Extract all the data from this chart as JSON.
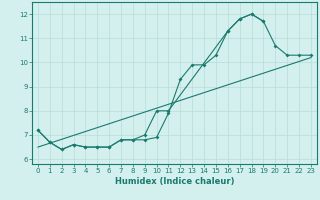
{
  "title": "",
  "xlabel": "Humidex (Indice chaleur)",
  "bg_color": "#d4f0ee",
  "grid_color": "#b8dcd8",
  "line_color": "#1a7a6e",
  "x_values": [
    0,
    1,
    2,
    3,
    4,
    5,
    6,
    7,
    8,
    9,
    10,
    11,
    12,
    13,
    14,
    15,
    16,
    17,
    18,
    19,
    20,
    21,
    22,
    23
  ],
  "line1": [
    7.2,
    6.7,
    6.4,
    6.6,
    6.5,
    6.5,
    6.5,
    6.8,
    6.8,
    6.8,
    6.9,
    7.9,
    9.3,
    9.9,
    9.9,
    10.3,
    11.3,
    11.8,
    12.0,
    11.7,
    10.7,
    10.3,
    10.3,
    10.3
  ],
  "line2_x": [
    0,
    1,
    2,
    3,
    4,
    5,
    6,
    7,
    8,
    9,
    10,
    11,
    16,
    17,
    18,
    19
  ],
  "line2_y": [
    7.2,
    6.7,
    6.4,
    6.6,
    6.5,
    6.5,
    6.5,
    6.8,
    6.8,
    7.0,
    8.0,
    8.0,
    11.3,
    11.8,
    12.0,
    11.7
  ],
  "line3_x": [
    0,
    23
  ],
  "line3_y": [
    6.5,
    10.2
  ],
  "xlim": [
    -0.5,
    23.5
  ],
  "ylim": [
    5.8,
    12.5
  ],
  "yticks": [
    6,
    7,
    8,
    9,
    10,
    11,
    12
  ],
  "xticks": [
    0,
    1,
    2,
    3,
    4,
    5,
    6,
    7,
    8,
    9,
    10,
    11,
    12,
    13,
    14,
    15,
    16,
    17,
    18,
    19,
    20,
    21,
    22,
    23
  ],
  "tick_fontsize": 5.0,
  "xlabel_fontsize": 6.0
}
